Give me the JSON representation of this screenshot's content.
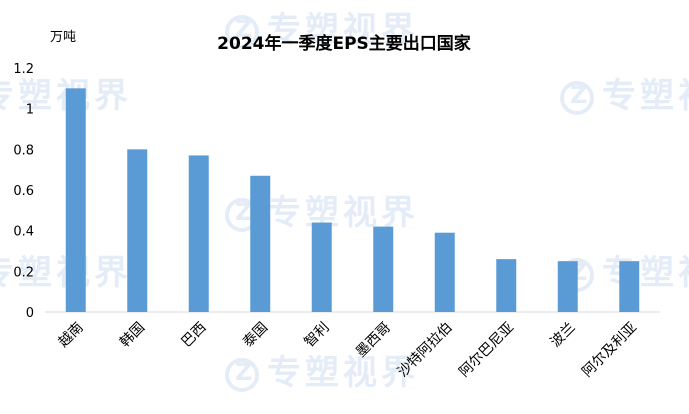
{
  "watermark_text": "专塑视界",
  "chart_data": {
    "type": "bar",
    "title": "2024年一季度EPS主要出口国家",
    "ylabel": "万吨",
    "xlabel": "",
    "ylim": [
      0,
      1.2
    ],
    "yticks": [
      "0",
      "0.2",
      "0.4",
      "0.6",
      "0.8",
      "1",
      "1.2"
    ],
    "categories": [
      "越南",
      "韩国",
      "巴西",
      "泰国",
      "智利",
      "墨西哥",
      "沙特阿拉伯",
      "阿尔巴尼亚",
      "波兰",
      "阿尔及利亚"
    ],
    "values": [
      1.1,
      0.8,
      0.77,
      0.67,
      0.44,
      0.42,
      0.39,
      0.26,
      0.25,
      0.25
    ],
    "bar_color": "#5b9bd5",
    "grid": false
  }
}
